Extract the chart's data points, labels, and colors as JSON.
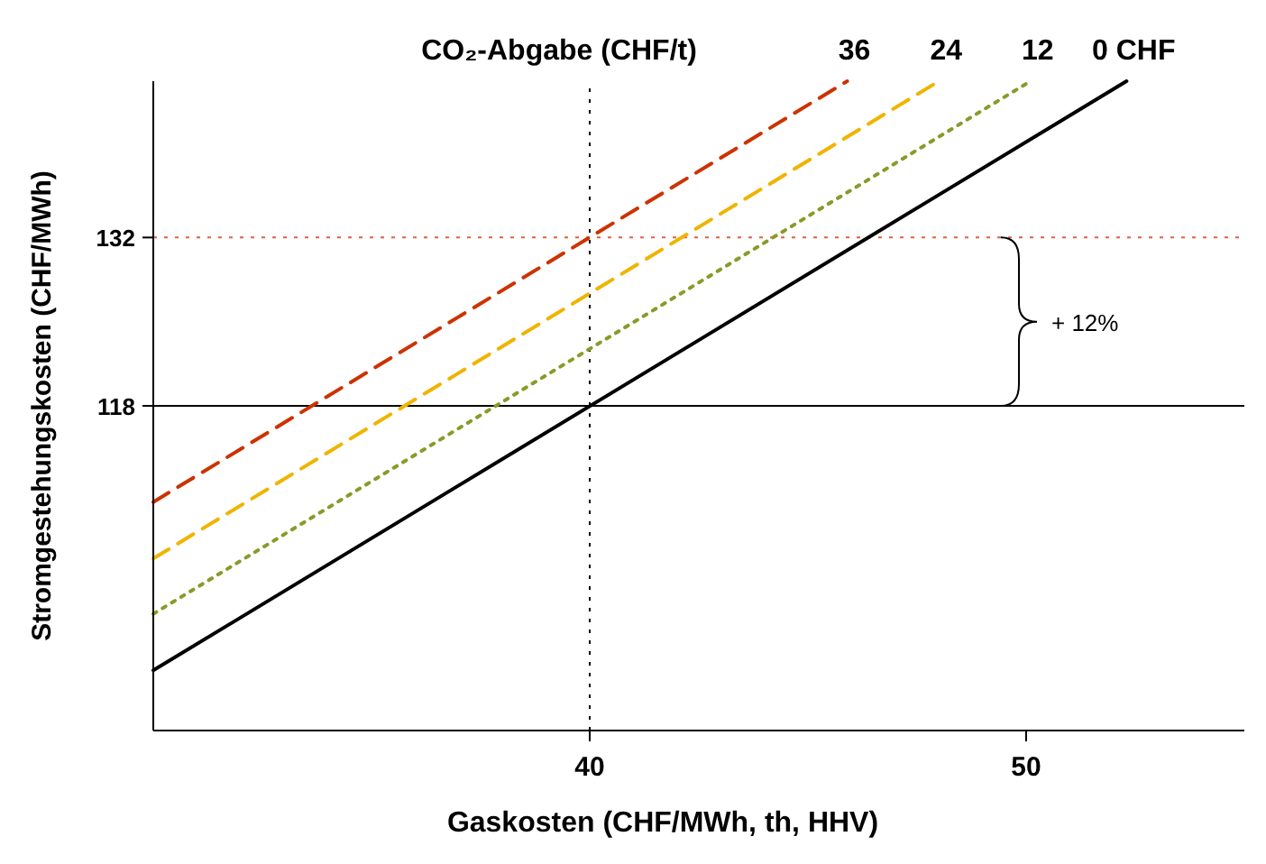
{
  "chart_data": {
    "type": "line",
    "title": "CO₂-Abgabe (CHF/t)",
    "xlabel": "Gaskosten (CHF/MWh, th, HHV)",
    "ylabel": "Stromgestehungskosten (CHF/MWh)",
    "xlim": [
      30,
      55
    ],
    "ylim": [
      91,
      145
    ],
    "xticks": [
      40,
      50
    ],
    "yticks": [
      118,
      132
    ],
    "grid": false,
    "marker": "none",
    "series": [
      {
        "name": "36",
        "color": "#cc3300",
        "line_style": "dashed",
        "x": [
          30,
          45.9
        ],
        "values": [
          110,
          145
        ]
      },
      {
        "name": "24",
        "color": "#f0b400",
        "line_style": "dashed",
        "x": [
          30,
          48
        ],
        "values": [
          105.3,
          145
        ]
      },
      {
        "name": "12",
        "color": "#8a9a2a",
        "line_style": "dotted",
        "x": [
          30,
          50.1
        ],
        "values": [
          100.7,
          145
        ]
      },
      {
        "name": "0 CHF",
        "color": "#000000",
        "line_style": "solid",
        "x": [
          30,
          52.3
        ],
        "values": [
          96,
          145
        ]
      }
    ],
    "ref_lines": [
      {
        "axis": "y",
        "value": 118,
        "color": "#000000",
        "line_style": "solid"
      },
      {
        "axis": "y",
        "value": 132,
        "color": "#e06040",
        "line_style": "dotted"
      },
      {
        "axis": "x",
        "value": 40,
        "color": "#000000",
        "line_style": "dotted"
      }
    ],
    "annotations": [
      "+ 12%"
    ]
  }
}
